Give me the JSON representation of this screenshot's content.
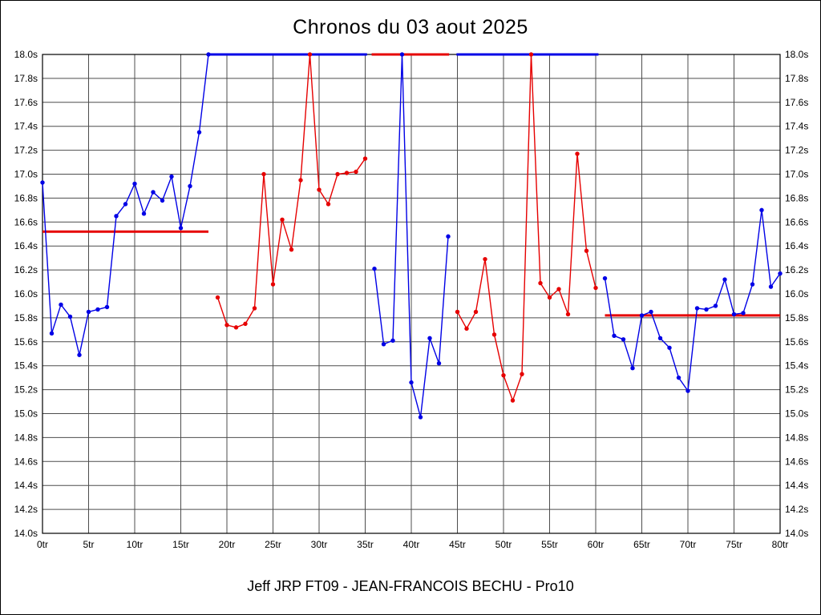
{
  "page": {
    "title": "Chronos du 03 aout 2025",
    "footer": "Jeff JRP FT09 - JEAN-FRANCOIS BECHU - Pro10"
  },
  "colors": {
    "blue": "#0000e6",
    "red": "#e60000",
    "grid": "#4d4d4d",
    "axis": "#000000",
    "background": "#ffffff",
    "text": "#000000"
  },
  "chart_data": {
    "type": "line",
    "title": "Chronos du 03 aout 2025",
    "subtitle": "Jeff JRP FT09 - JEAN-FRANCOIS BECHU - Pro10",
    "xlabel": "",
    "ylabel": "",
    "xlim": [
      0,
      80
    ],
    "ylim": [
      14.0,
      18.0
    ],
    "grid": true,
    "legend": "none",
    "x_axis": {
      "tick_values": [
        0,
        5,
        10,
        15,
        20,
        25,
        30,
        35,
        40,
        45,
        50,
        55,
        60,
        65,
        70,
        75,
        80
      ],
      "tick_labels": [
        "0tr",
        "5tr",
        "10tr",
        "15tr",
        "20tr",
        "25tr",
        "30tr",
        "35tr",
        "40tr",
        "45tr",
        "50tr",
        "55tr",
        "60tr",
        "65tr",
        "70tr",
        "75tr",
        "80tr"
      ]
    },
    "y_axis": {
      "tick_values": [
        14.0,
        14.2,
        14.4,
        14.6,
        14.8,
        15.0,
        15.2,
        15.4,
        15.6,
        15.8,
        16.0,
        16.2,
        16.4,
        16.6,
        16.8,
        17.0,
        17.2,
        17.4,
        17.6,
        17.8,
        18.0
      ],
      "tick_labels": [
        "14.0s",
        "14.2s",
        "14.4s",
        "14.6s",
        "14.8s",
        "15.0s",
        "15.2s",
        "15.4s",
        "15.6s",
        "15.8s",
        "16.0s",
        "16.2s",
        "16.4s",
        "16.6s",
        "16.8s",
        "17.0s",
        "17.2s",
        "17.4s",
        "17.6s",
        "17.8s",
        "18.0s"
      ],
      "sides": [
        "left",
        "right"
      ]
    },
    "series": [
      {
        "name": "blue-stint-1",
        "color": "blue",
        "markers": true,
        "points": [
          [
            0,
            16.93
          ],
          [
            1,
            15.67
          ],
          [
            2,
            15.91
          ],
          [
            3,
            15.81
          ],
          [
            4,
            15.49
          ],
          [
            5,
            15.85
          ],
          [
            6,
            15.87
          ],
          [
            7,
            15.89
          ],
          [
            8,
            16.65
          ],
          [
            9,
            16.75
          ],
          [
            10,
            16.92
          ],
          [
            11,
            16.67
          ],
          [
            12,
            16.85
          ],
          [
            13,
            16.78
          ],
          [
            14,
            16.98
          ],
          [
            15,
            16.55
          ],
          [
            16,
            16.9
          ],
          [
            17,
            17.35
          ],
          [
            18,
            18.0
          ]
        ]
      },
      {
        "name": "red-stint-1",
        "color": "red",
        "markers": true,
        "points": [
          [
            19,
            15.97
          ],
          [
            20,
            15.74
          ],
          [
            21,
            15.72
          ],
          [
            22,
            15.75
          ],
          [
            23,
            15.88
          ],
          [
            24,
            17.0
          ],
          [
            25,
            16.08
          ],
          [
            26,
            16.62
          ],
          [
            27,
            16.37
          ],
          [
            28,
            16.95
          ],
          [
            29,
            18.0
          ],
          [
            30,
            16.87
          ],
          [
            31,
            16.75
          ],
          [
            32,
            17.0
          ],
          [
            33,
            17.01
          ],
          [
            34,
            17.02
          ],
          [
            35,
            17.13
          ]
        ]
      },
      {
        "name": "blue-stint-2",
        "color": "blue",
        "markers": true,
        "points": [
          [
            36,
            16.21
          ],
          [
            37,
            15.58
          ],
          [
            38,
            15.61
          ],
          [
            39,
            18.0
          ],
          [
            40,
            15.26
          ],
          [
            41,
            14.97
          ],
          [
            42,
            15.63
          ],
          [
            43,
            15.42
          ],
          [
            44,
            16.48
          ]
        ]
      },
      {
        "name": "red-stint-2",
        "color": "red",
        "markers": true,
        "points": [
          [
            45,
            15.85
          ],
          [
            46,
            15.71
          ],
          [
            47,
            15.85
          ],
          [
            48,
            16.29
          ],
          [
            49,
            15.66
          ],
          [
            50,
            15.32
          ],
          [
            51,
            15.11
          ],
          [
            52,
            15.33
          ],
          [
            53,
            18.0
          ],
          [
            54,
            16.09
          ],
          [
            55,
            15.97
          ],
          [
            56,
            16.04
          ],
          [
            57,
            15.83
          ],
          [
            58,
            17.17
          ],
          [
            59,
            16.36
          ],
          [
            60,
            16.05
          ]
        ]
      },
      {
        "name": "blue-stint-3",
        "color": "blue",
        "markers": true,
        "points": [
          [
            61,
            16.13
          ],
          [
            62,
            15.65
          ],
          [
            63,
            15.62
          ],
          [
            64,
            15.38
          ],
          [
            65,
            15.82
          ],
          [
            66,
            15.85
          ],
          [
            67,
            15.63
          ],
          [
            68,
            15.55
          ],
          [
            69,
            15.3
          ],
          [
            70,
            15.19
          ],
          [
            71,
            15.88
          ],
          [
            72,
            15.87
          ],
          [
            73,
            15.9
          ],
          [
            74,
            16.12
          ],
          [
            75,
            15.83
          ],
          [
            76,
            15.84
          ],
          [
            77,
            16.08
          ],
          [
            78,
            16.7
          ],
          [
            79,
            16.06
          ],
          [
            80,
            16.17
          ]
        ]
      }
    ],
    "hlines": [
      {
        "name": "red-average-line-1",
        "color": "red",
        "y": 16.52,
        "x1": 0,
        "x2": 18
      },
      {
        "name": "blue-flat-line-1",
        "color": "blue",
        "y": 18.0,
        "x1": 18,
        "x2": 35.2
      },
      {
        "name": "red-flat-line-1",
        "color": "red",
        "y": 18.0,
        "x1": 35.7,
        "x2": 44.1
      },
      {
        "name": "blue-flat-line-2",
        "color": "blue",
        "y": 18.0,
        "x1": 44.9,
        "x2": 60.3
      },
      {
        "name": "red-average-line-2",
        "color": "red",
        "y": 15.82,
        "x1": 61,
        "x2": 80
      }
    ]
  }
}
